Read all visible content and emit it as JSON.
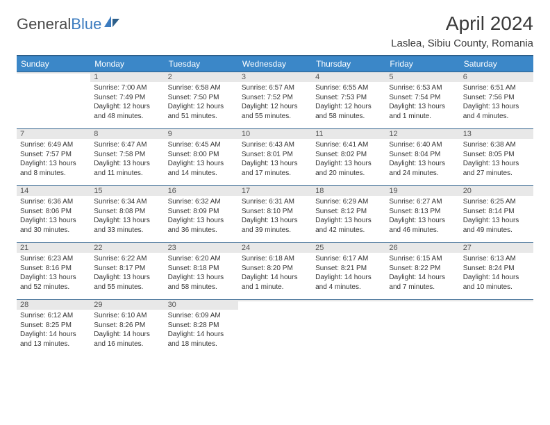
{
  "logo": {
    "text1": "General",
    "text2": "Blue"
  },
  "title": "April 2024",
  "location": "Laslea, Sibiu County, Romania",
  "colors": {
    "header_bg": "#3b87c8",
    "header_border": "#2d5f8a",
    "daynum_bg": "#e8e8e8",
    "text": "#333333"
  },
  "weekdays": [
    "Sunday",
    "Monday",
    "Tuesday",
    "Wednesday",
    "Thursday",
    "Friday",
    "Saturday"
  ],
  "weeks": [
    [
      {
        "num": "",
        "sunrise": "",
        "sunset": "",
        "daylight": ""
      },
      {
        "num": "1",
        "sunrise": "Sunrise: 7:00 AM",
        "sunset": "Sunset: 7:49 PM",
        "daylight": "Daylight: 12 hours and 48 minutes."
      },
      {
        "num": "2",
        "sunrise": "Sunrise: 6:58 AM",
        "sunset": "Sunset: 7:50 PM",
        "daylight": "Daylight: 12 hours and 51 minutes."
      },
      {
        "num": "3",
        "sunrise": "Sunrise: 6:57 AM",
        "sunset": "Sunset: 7:52 PM",
        "daylight": "Daylight: 12 hours and 55 minutes."
      },
      {
        "num": "4",
        "sunrise": "Sunrise: 6:55 AM",
        "sunset": "Sunset: 7:53 PM",
        "daylight": "Daylight: 12 hours and 58 minutes."
      },
      {
        "num": "5",
        "sunrise": "Sunrise: 6:53 AM",
        "sunset": "Sunset: 7:54 PM",
        "daylight": "Daylight: 13 hours and 1 minute."
      },
      {
        "num": "6",
        "sunrise": "Sunrise: 6:51 AM",
        "sunset": "Sunset: 7:56 PM",
        "daylight": "Daylight: 13 hours and 4 minutes."
      }
    ],
    [
      {
        "num": "7",
        "sunrise": "Sunrise: 6:49 AM",
        "sunset": "Sunset: 7:57 PM",
        "daylight": "Daylight: 13 hours and 8 minutes."
      },
      {
        "num": "8",
        "sunrise": "Sunrise: 6:47 AM",
        "sunset": "Sunset: 7:58 PM",
        "daylight": "Daylight: 13 hours and 11 minutes."
      },
      {
        "num": "9",
        "sunrise": "Sunrise: 6:45 AM",
        "sunset": "Sunset: 8:00 PM",
        "daylight": "Daylight: 13 hours and 14 minutes."
      },
      {
        "num": "10",
        "sunrise": "Sunrise: 6:43 AM",
        "sunset": "Sunset: 8:01 PM",
        "daylight": "Daylight: 13 hours and 17 minutes."
      },
      {
        "num": "11",
        "sunrise": "Sunrise: 6:41 AM",
        "sunset": "Sunset: 8:02 PM",
        "daylight": "Daylight: 13 hours and 20 minutes."
      },
      {
        "num": "12",
        "sunrise": "Sunrise: 6:40 AM",
        "sunset": "Sunset: 8:04 PM",
        "daylight": "Daylight: 13 hours and 24 minutes."
      },
      {
        "num": "13",
        "sunrise": "Sunrise: 6:38 AM",
        "sunset": "Sunset: 8:05 PM",
        "daylight": "Daylight: 13 hours and 27 minutes."
      }
    ],
    [
      {
        "num": "14",
        "sunrise": "Sunrise: 6:36 AM",
        "sunset": "Sunset: 8:06 PM",
        "daylight": "Daylight: 13 hours and 30 minutes."
      },
      {
        "num": "15",
        "sunrise": "Sunrise: 6:34 AM",
        "sunset": "Sunset: 8:08 PM",
        "daylight": "Daylight: 13 hours and 33 minutes."
      },
      {
        "num": "16",
        "sunrise": "Sunrise: 6:32 AM",
        "sunset": "Sunset: 8:09 PM",
        "daylight": "Daylight: 13 hours and 36 minutes."
      },
      {
        "num": "17",
        "sunrise": "Sunrise: 6:31 AM",
        "sunset": "Sunset: 8:10 PM",
        "daylight": "Daylight: 13 hours and 39 minutes."
      },
      {
        "num": "18",
        "sunrise": "Sunrise: 6:29 AM",
        "sunset": "Sunset: 8:12 PM",
        "daylight": "Daylight: 13 hours and 42 minutes."
      },
      {
        "num": "19",
        "sunrise": "Sunrise: 6:27 AM",
        "sunset": "Sunset: 8:13 PM",
        "daylight": "Daylight: 13 hours and 46 minutes."
      },
      {
        "num": "20",
        "sunrise": "Sunrise: 6:25 AM",
        "sunset": "Sunset: 8:14 PM",
        "daylight": "Daylight: 13 hours and 49 minutes."
      }
    ],
    [
      {
        "num": "21",
        "sunrise": "Sunrise: 6:23 AM",
        "sunset": "Sunset: 8:16 PM",
        "daylight": "Daylight: 13 hours and 52 minutes."
      },
      {
        "num": "22",
        "sunrise": "Sunrise: 6:22 AM",
        "sunset": "Sunset: 8:17 PM",
        "daylight": "Daylight: 13 hours and 55 minutes."
      },
      {
        "num": "23",
        "sunrise": "Sunrise: 6:20 AM",
        "sunset": "Sunset: 8:18 PM",
        "daylight": "Daylight: 13 hours and 58 minutes."
      },
      {
        "num": "24",
        "sunrise": "Sunrise: 6:18 AM",
        "sunset": "Sunset: 8:20 PM",
        "daylight": "Daylight: 14 hours and 1 minute."
      },
      {
        "num": "25",
        "sunrise": "Sunrise: 6:17 AM",
        "sunset": "Sunset: 8:21 PM",
        "daylight": "Daylight: 14 hours and 4 minutes."
      },
      {
        "num": "26",
        "sunrise": "Sunrise: 6:15 AM",
        "sunset": "Sunset: 8:22 PM",
        "daylight": "Daylight: 14 hours and 7 minutes."
      },
      {
        "num": "27",
        "sunrise": "Sunrise: 6:13 AM",
        "sunset": "Sunset: 8:24 PM",
        "daylight": "Daylight: 14 hours and 10 minutes."
      }
    ],
    [
      {
        "num": "28",
        "sunrise": "Sunrise: 6:12 AM",
        "sunset": "Sunset: 8:25 PM",
        "daylight": "Daylight: 14 hours and 13 minutes."
      },
      {
        "num": "29",
        "sunrise": "Sunrise: 6:10 AM",
        "sunset": "Sunset: 8:26 PM",
        "daylight": "Daylight: 14 hours and 16 minutes."
      },
      {
        "num": "30",
        "sunrise": "Sunrise: 6:09 AM",
        "sunset": "Sunset: 8:28 PM",
        "daylight": "Daylight: 14 hours and 18 minutes."
      },
      {
        "num": "",
        "sunrise": "",
        "sunset": "",
        "daylight": ""
      },
      {
        "num": "",
        "sunrise": "",
        "sunset": "",
        "daylight": ""
      },
      {
        "num": "",
        "sunrise": "",
        "sunset": "",
        "daylight": ""
      },
      {
        "num": "",
        "sunrise": "",
        "sunset": "",
        "daylight": ""
      }
    ]
  ]
}
